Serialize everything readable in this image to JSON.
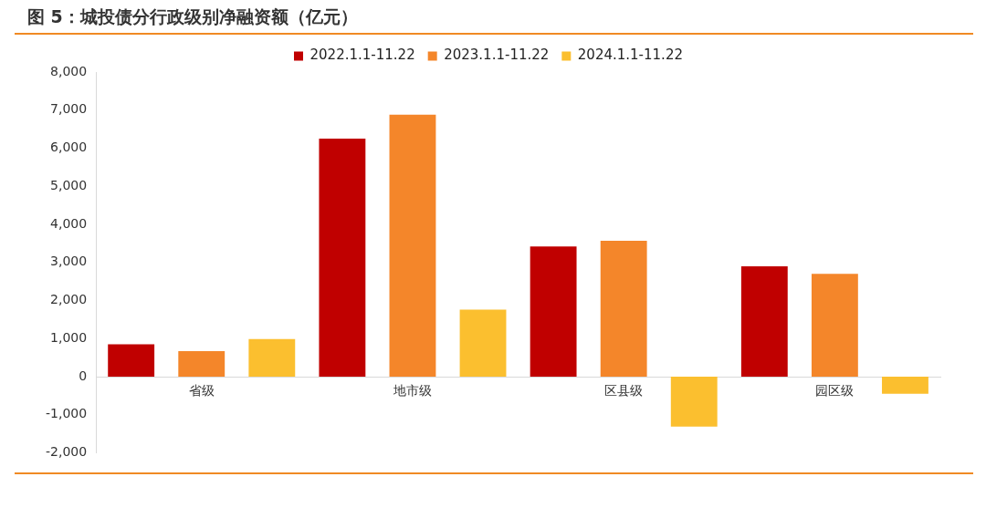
{
  "chart_data": {
    "type": "bar",
    "title": "图 5：城投债分行政级别净融资额（亿元）",
    "categories": [
      "省级",
      "地市级",
      "区县级",
      "园区级"
    ],
    "series": [
      {
        "name": "2022.1.1-11.22",
        "color": "#c00000",
        "values": [
          850,
          6250,
          3420,
          2900
        ]
      },
      {
        "name": "2023.1.1-11.22",
        "color": "#f4862a",
        "values": [
          670,
          6880,
          3570,
          2700
        ]
      },
      {
        "name": "2024.1.1-11.22",
        "color": "#fbbf2f",
        "values": [
          990,
          1760,
          -1310,
          -450
        ]
      }
    ],
    "ylim": [
      -2000,
      8000
    ],
    "yticks": [
      {
        "value": -2000,
        "label": "-2,000"
      },
      {
        "value": -1000,
        "label": "-1,000"
      },
      {
        "value": 0,
        "label": "0"
      },
      {
        "value": 1000,
        "label": "1,000"
      },
      {
        "value": 2000,
        "label": "2,000"
      },
      {
        "value": 3000,
        "label": "3,000"
      },
      {
        "value": 4000,
        "label": "4,000"
      },
      {
        "value": 5000,
        "label": "5,000"
      },
      {
        "value": 6000,
        "label": "6,000"
      },
      {
        "value": 7000,
        "label": "7,000"
      },
      {
        "value": 8000,
        "label": "8,000"
      }
    ],
    "legend": "top"
  }
}
